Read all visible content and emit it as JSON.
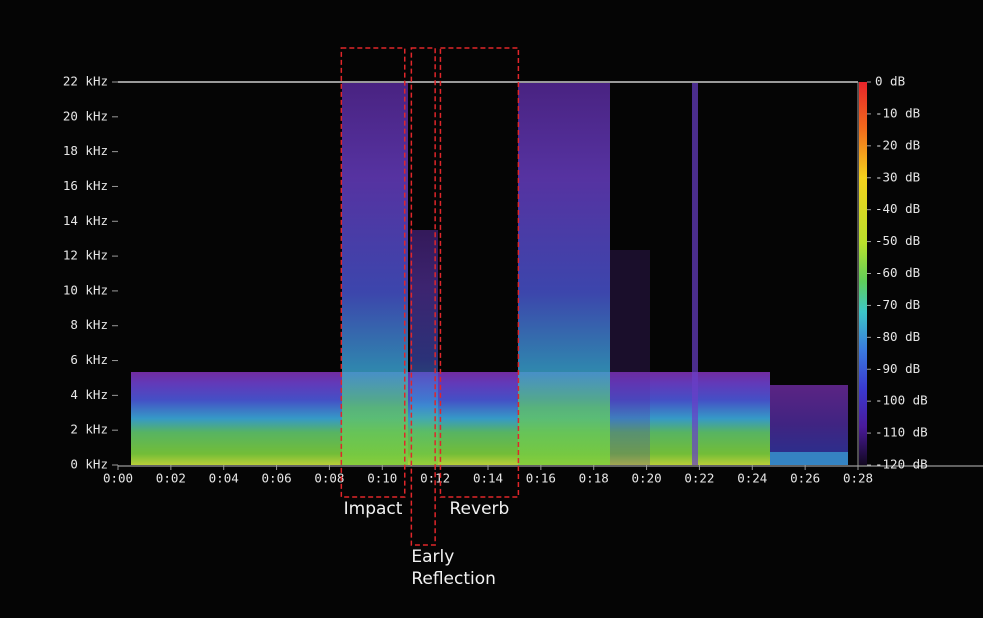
{
  "chart_data": {
    "type": "spectrogram",
    "xlim": [
      0,
      28
    ],
    "xticks": [
      {
        "value": 0,
        "label": "0:00"
      },
      {
        "value": 2,
        "label": "0:02"
      },
      {
        "value": 4,
        "label": "0:04"
      },
      {
        "value": 6,
        "label": "0:06"
      },
      {
        "value": 8,
        "label": "0:08"
      },
      {
        "value": 10,
        "label": "0:10"
      },
      {
        "value": 12,
        "label": "0:12"
      },
      {
        "value": 14,
        "label": "0:14"
      },
      {
        "value": 16,
        "label": "0:16"
      },
      {
        "value": 18,
        "label": "0:18"
      },
      {
        "value": 20,
        "label": "0:20"
      },
      {
        "value": 22,
        "label": "0:22"
      },
      {
        "value": 24,
        "label": "0:24"
      },
      {
        "value": 26,
        "label": "0:26"
      },
      {
        "value": 28,
        "label": "0:28"
      }
    ],
    "ylim": [
      0,
      22
    ],
    "yticks": [
      {
        "value": 0,
        "label": "0 kHz"
      },
      {
        "value": 2,
        "label": "2 kHz"
      },
      {
        "value": 4,
        "label": "4 kHz"
      },
      {
        "value": 6,
        "label": "6 kHz"
      },
      {
        "value": 8,
        "label": "8 kHz"
      },
      {
        "value": 10,
        "label": "10 kHz"
      },
      {
        "value": 12,
        "label": "12 kHz"
      },
      {
        "value": 14,
        "label": "14 kHz"
      },
      {
        "value": 16,
        "label": "16 kHz"
      },
      {
        "value": 18,
        "label": "18 kHz"
      },
      {
        "value": 20,
        "label": "20 kHz"
      },
      {
        "value": 22,
        "label": "22 kHz"
      }
    ],
    "colorbar": {
      "lim": [
        -120,
        0
      ],
      "ticks": [
        {
          "value": 0,
          "label": "0 dB"
        },
        {
          "value": -10,
          "label": "-10 dB"
        },
        {
          "value": -20,
          "label": "-20 dB"
        },
        {
          "value": -30,
          "label": "-30 dB"
        },
        {
          "value": -40,
          "label": "-40 dB"
        },
        {
          "value": -50,
          "label": "-50 dB"
        },
        {
          "value": -60,
          "label": "-60 dB"
        },
        {
          "value": -70,
          "label": "-70 dB"
        },
        {
          "value": -80,
          "label": "-80 dB"
        },
        {
          "value": -90,
          "label": "-90 dB"
        },
        {
          "value": -100,
          "label": "-100 dB"
        },
        {
          "value": -110,
          "label": "-110 dB"
        },
        {
          "value": -120,
          "label": "-120 dB"
        }
      ]
    },
    "annotations": [
      {
        "text": [
          "Impact"
        ],
        "x": [
          8.45,
          10.85
        ]
      },
      {
        "text": [
          "Early",
          "Reflection"
        ],
        "x": [
          11.1,
          12.0
        ]
      },
      {
        "text": [
          "Reverb"
        ],
        "x": [
          12.2,
          15.15
        ]
      }
    ]
  }
}
